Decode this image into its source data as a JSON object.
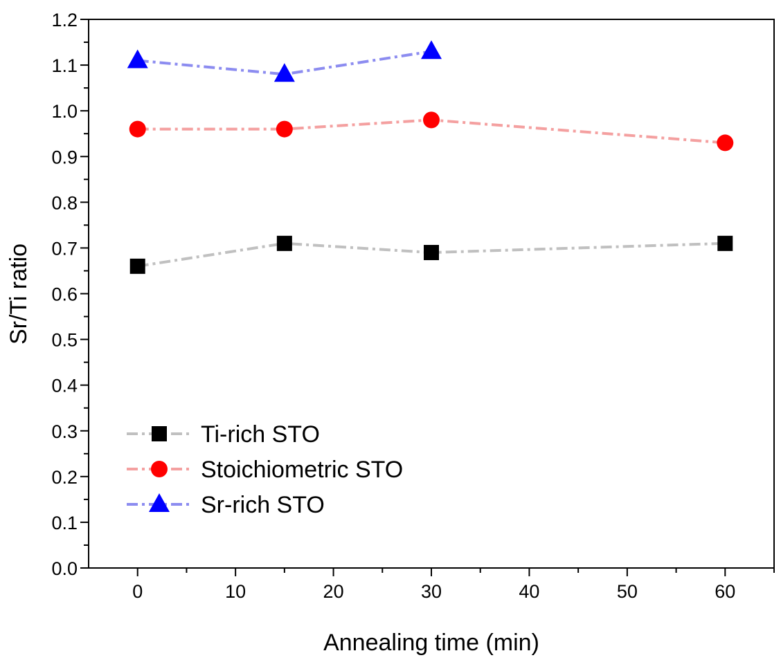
{
  "chart_data": {
    "type": "line",
    "title": "",
    "xlabel": "Annealing time (min)",
    "ylabel": "Sr/Ti ratio",
    "xlim": [
      -5,
      65
    ],
    "ylim": [
      0.0,
      1.2
    ],
    "xticks": [
      0,
      10,
      20,
      30,
      40,
      50,
      60
    ],
    "xtick_labels": [
      "0",
      "10",
      "20",
      "30",
      "40",
      "50",
      "60"
    ],
    "yticks": [
      0.0,
      0.1,
      0.2,
      0.3,
      0.4,
      0.5,
      0.6,
      0.7,
      0.8,
      0.9,
      1.0,
      1.1,
      1.2
    ],
    "ytick_labels": [
      "0.0",
      "0.1",
      "0.2",
      "0.3",
      "0.4",
      "0.5",
      "0.6",
      "0.7",
      "0.8",
      "0.9",
      "1.0",
      "1.1",
      "1.2"
    ],
    "grid": false,
    "legend_position": "bottom-left",
    "series": [
      {
        "name": "Ti-rich STO",
        "marker": "square",
        "marker_color": "#000000",
        "line_color": "#c0c0c0",
        "x": [
          0,
          15,
          30,
          60
        ],
        "y": [
          0.66,
          0.71,
          0.69,
          0.71
        ]
      },
      {
        "name": "Stoichiometric STO",
        "marker": "circle",
        "marker_color": "#ff0000",
        "line_color": "#f4a0a0",
        "x": [
          0,
          15,
          30,
          60
        ],
        "y": [
          0.96,
          0.96,
          0.98,
          0.93
        ]
      },
      {
        "name": "Sr-rich STO",
        "marker": "triangle",
        "marker_color": "#0000ff",
        "line_color": "#8c8cf0",
        "x": [
          0,
          15,
          30
        ],
        "y": [
          1.11,
          1.08,
          1.13
        ]
      }
    ]
  }
}
